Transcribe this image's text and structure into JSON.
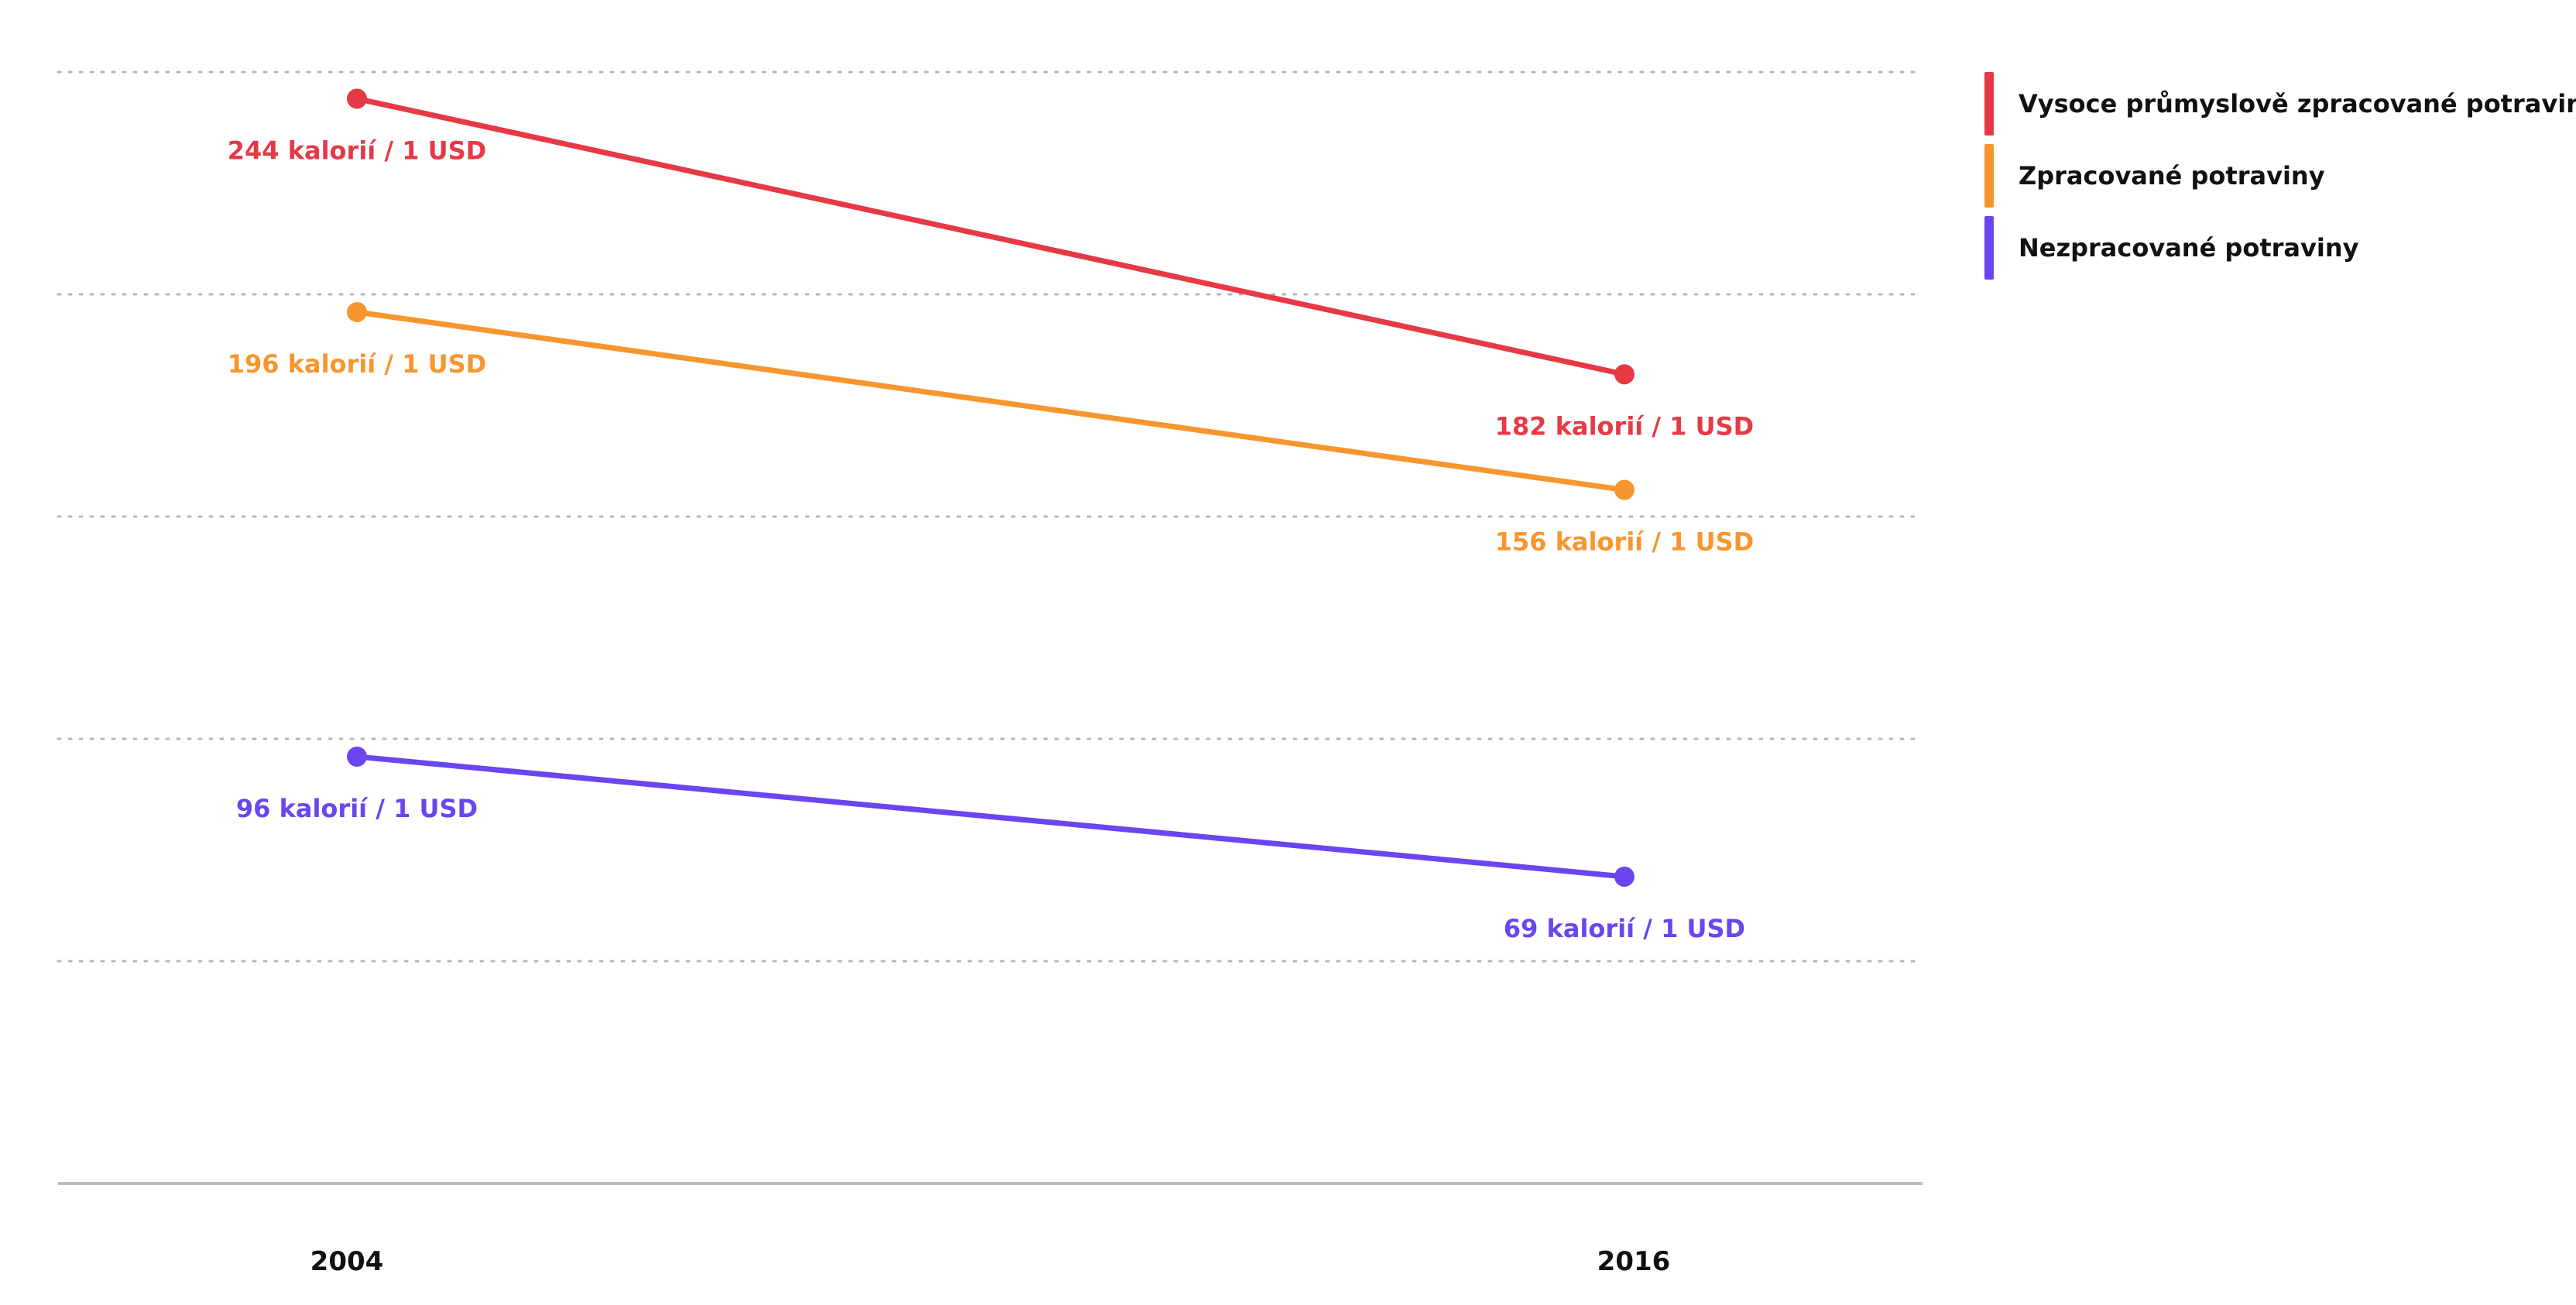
{
  "chart_data": {
    "type": "line",
    "title": "",
    "xlabel": "",
    "ylabel": "",
    "x": [
      "2004",
      "2016"
    ],
    "ylim": [
      0,
      250
    ],
    "y_gridlines": [
      50,
      100,
      150,
      200,
      250
    ],
    "grid": true,
    "legend_position": "top-right",
    "series": [
      {
        "name": "Vysoce průmyslově zpracované potraviny",
        "color": "#e63946",
        "values": [
          244,
          182
        ],
        "labels": [
          "244 kalorií / 1 USD",
          "182 kalorií / 1 USD"
        ]
      },
      {
        "name": "Zpracované potraviny",
        "color": "#f7962e",
        "values": [
          196,
          156
        ],
        "labels": [
          "196 kalorií / 1 USD",
          "156 kalorií / 1 USD"
        ]
      },
      {
        "name": "Nezpracované potraviny",
        "color": "#6a45f0",
        "values": [
          96,
          69
        ],
        "labels": [
          "96 kalorií / 1 USD",
          "69 kalorií / 1 USD"
        ]
      }
    ]
  }
}
